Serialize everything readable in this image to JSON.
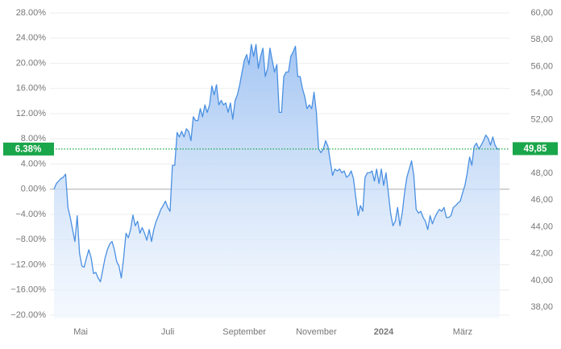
{
  "chart_data": {
    "type": "line",
    "color": "#4a90e2",
    "values": [
      0,
      0.9,
      1.3,
      1.7,
      1.9,
      2.4,
      -2.9,
      -4.5,
      -6.4,
      -8.3,
      -4.2,
      -10.2,
      -12.2,
      -12.4,
      -10.9,
      -9.6,
      -10.9,
      -13.4,
      -13.2,
      -14.1,
      -14.7,
      -12.8,
      -10.9,
      -9.6,
      -8.7,
      -8.3,
      -9.6,
      -11.5,
      -12.2,
      -14.1,
      -10.9,
      -7.0,
      -7.7,
      -6.4,
      -4.1,
      -5.8,
      -5.1,
      -7.0,
      -6.1,
      -7.0,
      -8.1,
      -6.4,
      -8.3,
      -6.4,
      -5.1,
      -4.2,
      -3.2,
      -2.6,
      -1.9,
      -2.9,
      -3.5,
      3.8,
      3.8,
      9.0,
      8.3,
      9.2,
      8.3,
      9.6,
      9.2,
      7.7,
      11.5,
      10.9,
      10.9,
      12.8,
      11.5,
      13.4,
      12.2,
      13.4,
      16.4,
      15.0,
      16.6,
      13.4,
      14.1,
      13.4,
      13.7,
      12.2,
      13.7,
      11.1,
      14.1,
      15.0,
      16.6,
      18.6,
      20.5,
      21.4,
      19.8,
      23.0,
      21.1,
      23.0,
      19.2,
      21.1,
      22.4,
      17.9,
      19.2,
      22.4,
      20.5,
      18.6,
      19.8,
      12.2,
      12.2,
      17.9,
      18.6,
      18.6,
      21.1,
      21.8,
      22.7,
      17.9,
      17.9,
      16.0,
      14.7,
      12.8,
      13.4,
      12.8,
      15.4,
      12.2,
      6.4,
      5.8,
      6.4,
      7.7,
      6.8,
      4.5,
      2.2,
      3.2,
      2.9,
      3.2,
      2.6,
      2.9,
      1.9,
      2.2,
      2.9,
      1.7,
      -1.3,
      -4.2,
      -2.6,
      -3.5,
      1.9,
      2.6,
      2.6,
      2.9,
      1.3,
      3.2,
      0.9,
      3.2,
      0.6,
      2.6,
      -0.6,
      -3.8,
      -5.8,
      -5.1,
      -2.9,
      -5.8,
      -3.8,
      -0.6,
      1.9,
      3.2,
      4.5,
      2.2,
      -3.2,
      -3.8,
      -3.5,
      -4.5,
      -5.1,
      -6.4,
      -4.2,
      -5.5,
      -4.5,
      -3.8,
      -3.2,
      -3.5,
      -2.9,
      -4.5,
      -4.5,
      -4.2,
      -2.9,
      -2.6,
      -2.2,
      -1.9,
      -0.6,
      0.6,
      2.6,
      5.1,
      3.8,
      6.8,
      7.3,
      6.4,
      7.0,
      7.7,
      8.6,
      8.1,
      7.0,
      8.3,
      7.0,
      6.4,
      6.38
    ],
    "xlim": [
      0,
      192
    ],
    "xticks": [
      {
        "value": 11.5,
        "label": "Mai"
      },
      {
        "value": 49,
        "label": "Juli"
      },
      {
        "value": 82,
        "label": "September"
      },
      {
        "value": 113,
        "label": "November"
      },
      {
        "value": 142,
        "label": "2024"
      },
      {
        "value": 176,
        "label": "März"
      }
    ],
    "ylim": [
      -20,
      28
    ],
    "yticks": [
      {
        "value": 28,
        "label": "28.00%"
      },
      {
        "value": 24,
        "label": "24.00%"
      },
      {
        "value": 20,
        "label": "20.00%"
      },
      {
        "value": 16,
        "label": "16.00%"
      },
      {
        "value": 12,
        "label": "12.00%"
      },
      {
        "value": 8,
        "label": "8.00%"
      },
      {
        "value": 4,
        "label": "4.00%"
      },
      {
        "value": 0,
        "label": "0.00%"
      },
      {
        "value": -4,
        "label": "−4.00%"
      },
      {
        "value": -8,
        "label": "−8.00%"
      },
      {
        "value": -12,
        "label": "−12.00%"
      },
      {
        "value": -16,
        "label": "−16.00%"
      },
      {
        "value": -20,
        "label": "−20.00%"
      }
    ],
    "y2lim": [
      37.4,
      60
    ],
    "y2ticks": [
      {
        "value": 60,
        "label": "60,00"
      },
      {
        "value": 58,
        "label": "58,00"
      },
      {
        "value": 56,
        "label": "56,00"
      },
      {
        "value": 54,
        "label": "54,00"
      },
      {
        "value": 52,
        "label": "52,00"
      },
      {
        "value": 50,
        "label": "50,00"
      },
      {
        "value": 48,
        "label": "48,00"
      },
      {
        "value": 46,
        "label": "46,00"
      },
      {
        "value": 44,
        "label": "44,00"
      },
      {
        "value": 42,
        "label": "42,00"
      },
      {
        "value": 40,
        "label": "40,00"
      },
      {
        "value": 38,
        "label": "38,00"
      }
    ],
    "current": {
      "value": 6.38,
      "label": "6.38%",
      "y2_value": 49.85,
      "y2_label": "49,85",
      "color": "#1aa64a"
    },
    "grid": true
  }
}
